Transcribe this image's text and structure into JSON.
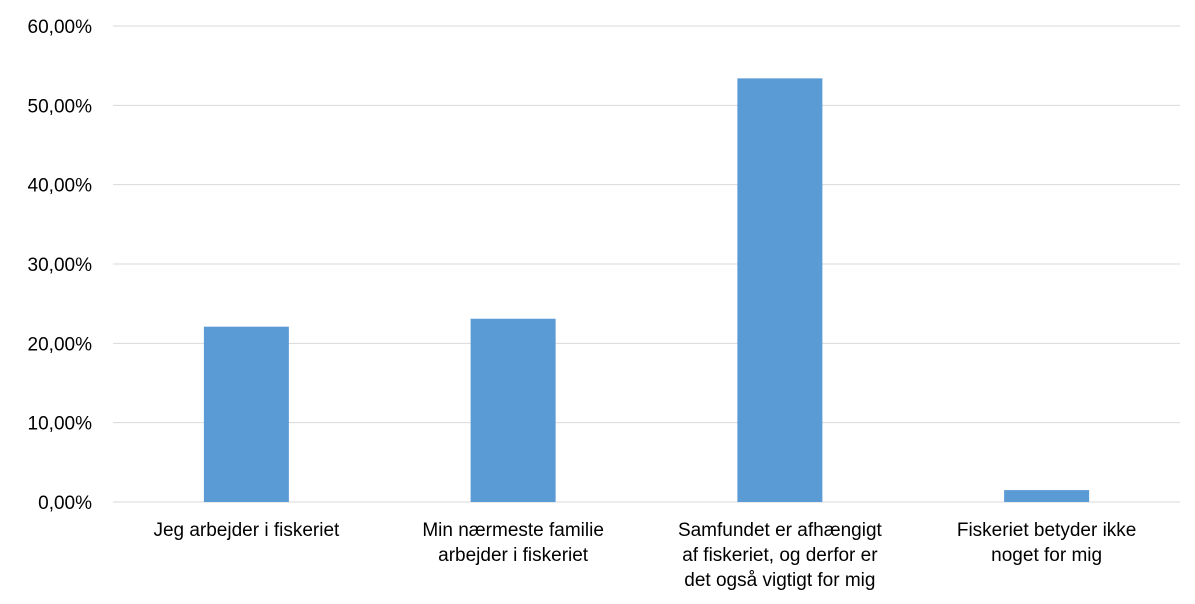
{
  "chart_data": {
    "type": "bar",
    "categories": [
      [
        "Jeg arbejder i fiskeriet"
      ],
      [
        "Min nærmeste familie",
        "arbejder i fiskeriet"
      ],
      [
        "Samfundet er afhængigt",
        "af fiskeriet, og derfor er",
        "det også vigtigt for mig"
      ],
      [
        "Fiskeriet betyder ikke",
        "noget for mig"
      ]
    ],
    "values": [
      22.1,
      23.1,
      53.4,
      1.5
    ],
    "ylim": [
      0,
      60
    ],
    "yticks": [
      0,
      10,
      20,
      30,
      40,
      50,
      60
    ],
    "ytick_labels": [
      "0,00%",
      "10,00%",
      "20,00%",
      "30,00%",
      "40,00%",
      "50,00%",
      "60,00%"
    ],
    "grid": true,
    "bar_color": "#5b9bd5",
    "grid_color": "#d9d9d9",
    "title": "",
    "xlabel": "",
    "ylabel": ""
  }
}
